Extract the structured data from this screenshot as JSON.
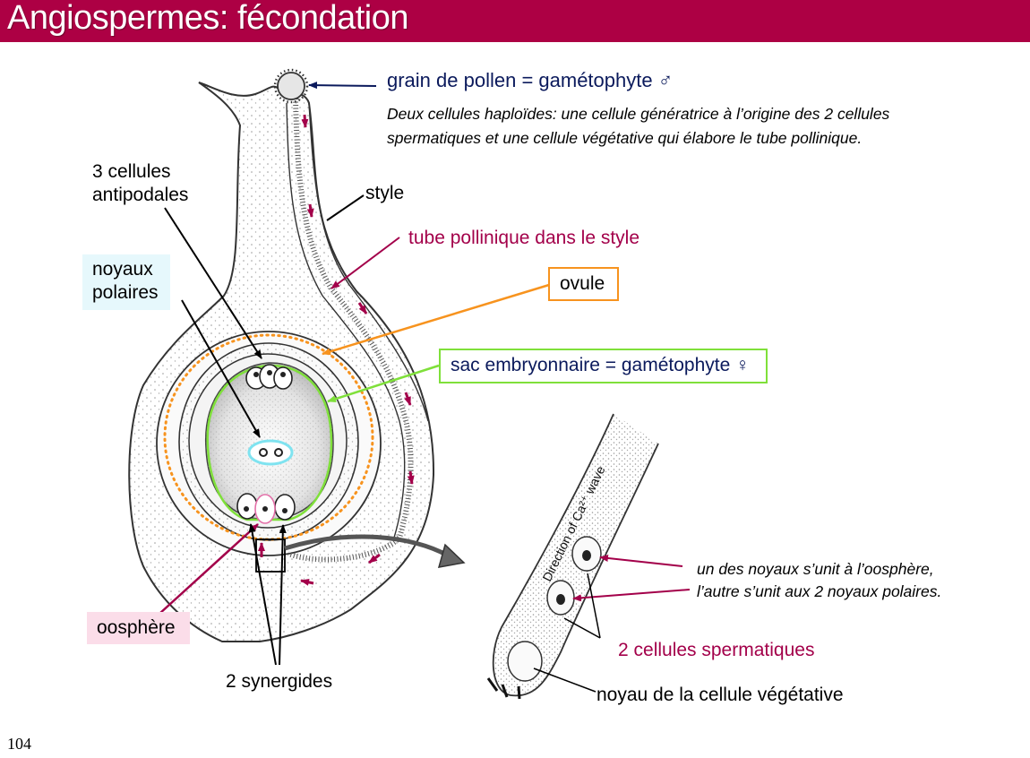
{
  "slide": {
    "title": "Angiospermes: fécondation",
    "page_number": "104"
  },
  "labels": {
    "pollen_grain": "grain de pollen = gamétophyte ♂",
    "pollen_description_line1": "Deux cellules haploïdes: une cellule génératrice à l’origine des 2 cellules",
    "pollen_description_line2": "spermatiques et une cellule végétative qui élabore le tube pollinique.",
    "antipodal_cells_line1": "3 cellules",
    "antipodal_cells_line2": "antipodales",
    "style": "style",
    "pollen_tube_in_style": "tube pollinique dans le style",
    "polar_nuclei_line1": "noyaux",
    "polar_nuclei_line2": "polaires",
    "ovule": "ovule",
    "embryo_sac": "sac embryonnaire = gamétophyte ♀",
    "egg_cell": "oosphère",
    "synergids": "2 synergides",
    "nucleus_fusion_line1": "un des noyaux s’unit à l’oosphère,",
    "nucleus_fusion_line2": "l’autre s’unit aux 2 noyaux polaires.",
    "sperm_cells": "2 cellules spermatiques",
    "vegetative_nucleus": "noyau de la cellule végétative",
    "calcium_wave": "Direction of Ca²⁺ wave"
  },
  "colors": {
    "title_bar": "#ad0044",
    "navy": "#0b1a5c",
    "crimson": "#a3004a",
    "ovule_orange": "#f7931e",
    "embryo_sac_green": "#7fe03a",
    "polar_cyan": "#7fe3f0",
    "polar_label_bg": "#e6f8fc",
    "egg_label_bg": "#fbdde9",
    "egg_outline": "#e36fa8"
  }
}
